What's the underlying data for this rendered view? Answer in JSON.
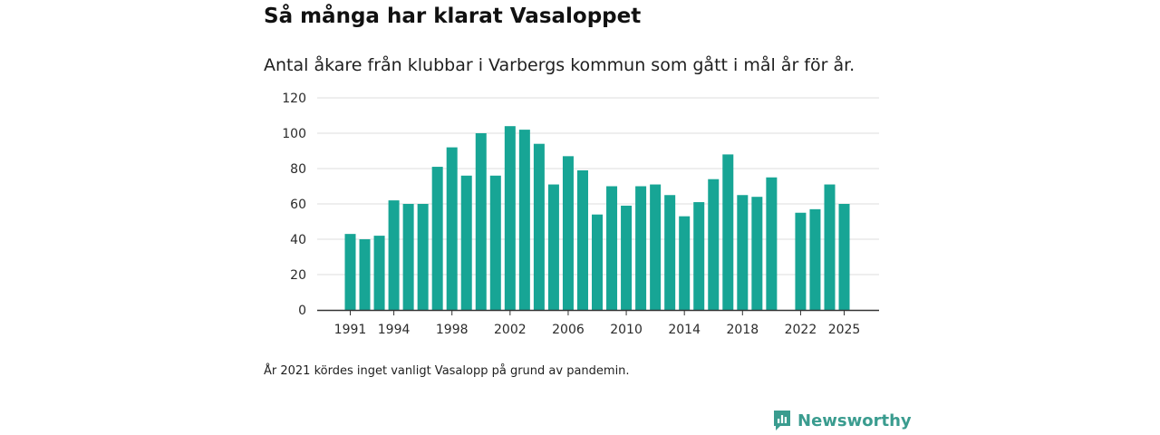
{
  "title": "Så många har klarat Vasaloppet",
  "subtitle": "Antal åkare från klubbar i Varbergs kommun som gått i mål år för år.",
  "note": "År 2021 kördes inget vanligt Vasalopp på grund av pandemin.",
  "brand": {
    "name": "Newsworthy",
    "icon": "newsworthy-logo-icon",
    "color": "#3a9c8f"
  },
  "colors": {
    "bar": "#17a595",
    "grid": "#dcdcdc",
    "axis": "#333333"
  },
  "chart_data": {
    "type": "bar",
    "title": "Så många har klarat Vasaloppet",
    "xlabel": "",
    "ylabel": "",
    "ylim": [
      0,
      120
    ],
    "yticks": [
      0,
      20,
      40,
      60,
      80,
      100,
      120
    ],
    "xtick_labels": [
      "1991",
      "1994",
      "1998",
      "2002",
      "2006",
      "2010",
      "2014",
      "2018",
      "2022",
      "2025"
    ],
    "categories": [
      1991,
      1992,
      1993,
      1994,
      1995,
      1996,
      1997,
      1998,
      1999,
      2000,
      2001,
      2002,
      2003,
      2004,
      2005,
      2006,
      2007,
      2008,
      2009,
      2010,
      2011,
      2012,
      2013,
      2014,
      2015,
      2016,
      2017,
      2018,
      2019,
      2020,
      2021,
      2022,
      2023,
      2024,
      2025
    ],
    "values": [
      43,
      40,
      42,
      62,
      60,
      60,
      81,
      92,
      76,
      100,
      76,
      104,
      102,
      94,
      71,
      87,
      79,
      54,
      70,
      59,
      70,
      71,
      65,
      53,
      61,
      74,
      88,
      65,
      64,
      75,
      null,
      55,
      57,
      71,
      60
    ],
    "grid": true,
    "legend": "none"
  }
}
